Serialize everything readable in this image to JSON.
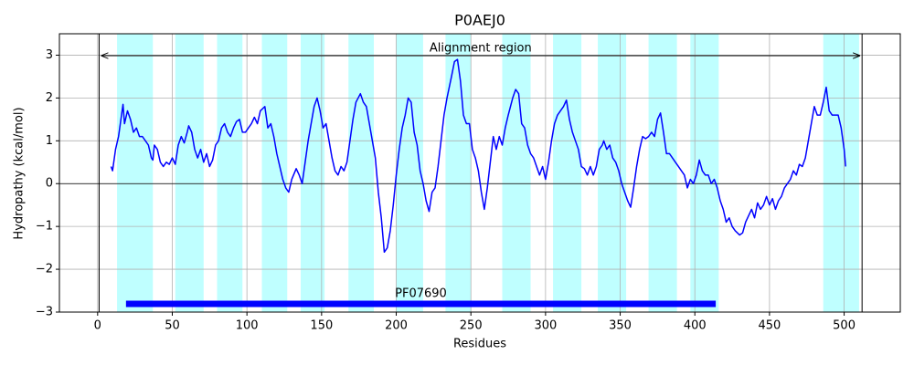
{
  "chart_data": {
    "type": "line",
    "title": "P0AEJ0",
    "x_label": "Residues",
    "y_label": "Hydropathy (kcal/mol)",
    "xlim": [
      -25.6,
      537.6
    ],
    "ylim": [
      -3,
      3.5
    ],
    "xticks": [
      0,
      50,
      100,
      150,
      200,
      250,
      300,
      350,
      400,
      450,
      500
    ],
    "yticks": [
      {
        "value": -3,
        "label": "−3"
      },
      {
        "value": -2,
        "label": "−2"
      },
      {
        "value": -1,
        "label": "−1"
      },
      0,
      1,
      2,
      3
    ],
    "grid": true,
    "region_color": "#00ffff",
    "regions": [
      [
        13,
        37
      ],
      [
        52,
        71
      ],
      [
        80,
        97
      ],
      [
        110,
        127
      ],
      [
        136,
        152
      ],
      [
        168,
        185
      ],
      [
        200,
        218
      ],
      [
        233,
        250
      ],
      [
        271,
        290
      ],
      [
        305,
        324
      ],
      [
        335,
        354
      ],
      [
        369,
        388
      ],
      [
        397,
        416
      ],
      [
        486,
        510
      ]
    ],
    "alignment": {
      "label": "Alignment region",
      "start": 1,
      "end": 512
    },
    "domains": [
      {
        "name": "PF07690",
        "start": 19,
        "end": 414,
        "color": "#0000ff"
      }
    ],
    "x": [
      9,
      10,
      12,
      14,
      16,
      17,
      18,
      20,
      22,
      24,
      26,
      28,
      30,
      32,
      34,
      36,
      37,
      38,
      40,
      42,
      44,
      46,
      48,
      50,
      52,
      54,
      56,
      58,
      60,
      61,
      63,
      65,
      67,
      69,
      71,
      73,
      75,
      77,
      79,
      81,
      83,
      85,
      87,
      89,
      91,
      93,
      95,
      97,
      99,
      101,
      103,
      105,
      107,
      109,
      112,
      114,
      116,
      118,
      120,
      122,
      124,
      126,
      128,
      130,
      133,
      135,
      137,
      139,
      141,
      143,
      145,
      147,
      149,
      151,
      153,
      155,
      157,
      159,
      161,
      163,
      165,
      167,
      169,
      171,
      173,
      176,
      178,
      180,
      182,
      184,
      186,
      188,
      190,
      192,
      194,
      196,
      198,
      200,
      202,
      204,
      206,
      208,
      210,
      212,
      214,
      216,
      218,
      220,
      222,
      224,
      226,
      228,
      230,
      232,
      234,
      237,
      239,
      241,
      243,
      245,
      247,
      249,
      251,
      253,
      255,
      257,
      259,
      261,
      263,
      265,
      267,
      269,
      271,
      273,
      275,
      278,
      280,
      282,
      284,
      286,
      288,
      290,
      292,
      294,
      296,
      298,
      300,
      302,
      304,
      306,
      308,
      310,
      312,
      314,
      316,
      318,
      320,
      322,
      324,
      326,
      328,
      330,
      332,
      334,
      336,
      338,
      339,
      341,
      343,
      345,
      347,
      349,
      351,
      353,
      355,
      357,
      359,
      361,
      363,
      365,
      367,
      369,
      371,
      373,
      375,
      377,
      379,
      381,
      383,
      385,
      387,
      389,
      391,
      393,
      395,
      397,
      399,
      401,
      403,
      405,
      407,
      409,
      411,
      413,
      415,
      417,
      419,
      421,
      423,
      425,
      427,
      430,
      432,
      434,
      436,
      438,
      440,
      442,
      444,
      446,
      448,
      450,
      452,
      454,
      456,
      458,
      460,
      462,
      464,
      466,
      468,
      470,
      472,
      474,
      476,
      478,
      480,
      482,
      484,
      486,
      488,
      490,
      492,
      494,
      496,
      498,
      500,
      501
    ],
    "series": [
      {
        "name": "Hydropathy",
        "color": "#0000ff",
        "values": [
          0.4,
          0.3,
          0.8,
          1.1,
          1.6,
          1.85,
          1.4,
          1.7,
          1.5,
          1.2,
          1.3,
          1.1,
          1.1,
          1.0,
          0.9,
          0.6,
          0.55,
          0.9,
          0.8,
          0.5,
          0.4,
          0.5,
          0.45,
          0.6,
          0.45,
          0.9,
          1.1,
          0.95,
          1.2,
          1.35,
          1.2,
          0.8,
          0.6,
          0.8,
          0.5,
          0.7,
          0.4,
          0.55,
          0.9,
          1.0,
          1.3,
          1.4,
          1.2,
          1.1,
          1.3,
          1.45,
          1.5,
          1.2,
          1.2,
          1.3,
          1.4,
          1.55,
          1.4,
          1.7,
          1.8,
          1.3,
          1.4,
          1.1,
          0.7,
          0.4,
          0.1,
          -0.1,
          -0.2,
          0.1,
          0.35,
          0.2,
          0.0,
          0.5,
          1.0,
          1.4,
          1.8,
          2.0,
          1.7,
          1.3,
          1.4,
          1.0,
          0.6,
          0.3,
          0.2,
          0.4,
          0.3,
          0.5,
          1.0,
          1.5,
          1.9,
          2.1,
          1.9,
          1.8,
          1.4,
          1.0,
          0.6,
          -0.2,
          -0.8,
          -1.6,
          -1.5,
          -1.1,
          -0.5,
          0.2,
          0.8,
          1.3,
          1.6,
          2.0,
          1.9,
          1.2,
          0.9,
          0.3,
          0.0,
          -0.4,
          -0.65,
          -0.2,
          -0.1,
          0.4,
          1.0,
          1.6,
          2.0,
          2.5,
          2.85,
          2.9,
          2.4,
          1.6,
          1.4,
          1.4,
          0.8,
          0.6,
          0.3,
          -0.2,
          -0.6,
          -0.1,
          0.5,
          1.1,
          0.8,
          1.1,
          0.9,
          1.3,
          1.6,
          2.0,
          2.2,
          2.1,
          1.4,
          1.3,
          0.9,
          0.7,
          0.6,
          0.4,
          0.2,
          0.4,
          0.1,
          0.5,
          1.0,
          1.4,
          1.6,
          1.7,
          1.8,
          1.95,
          1.5,
          1.2,
          1.0,
          0.8,
          0.4,
          0.35,
          0.2,
          0.4,
          0.2,
          0.4,
          0.8,
          0.9,
          1.0,
          0.8,
          0.9,
          0.6,
          0.5,
          0.3,
          0.0,
          -0.2,
          -0.4,
          -0.55,
          -0.1,
          0.4,
          0.8,
          1.1,
          1.05,
          1.1,
          1.2,
          1.1,
          1.5,
          1.65,
          1.2,
          0.7,
          0.7,
          0.6,
          0.5,
          0.4,
          0.3,
          0.2,
          -0.1,
          0.1,
          0.0,
          0.2,
          0.55,
          0.3,
          0.2,
          0.2,
          0.0,
          0.1,
          -0.1,
          -0.4,
          -0.6,
          -0.9,
          -0.8,
          -1.0,
          -1.1,
          -1.2,
          -1.15,
          -0.9,
          -0.75,
          -0.6,
          -0.8,
          -0.45,
          -0.6,
          -0.5,
          -0.3,
          -0.5,
          -0.35,
          -0.6,
          -0.4,
          -0.3,
          -0.1,
          0.0,
          0.1,
          0.3,
          0.2,
          0.45,
          0.4,
          0.6,
          1.0,
          1.4,
          1.8,
          1.6,
          1.6,
          1.9,
          2.25,
          1.7,
          1.6,
          1.6,
          1.6,
          1.3,
          0.8,
          0.4
        ]
      }
    ]
  }
}
